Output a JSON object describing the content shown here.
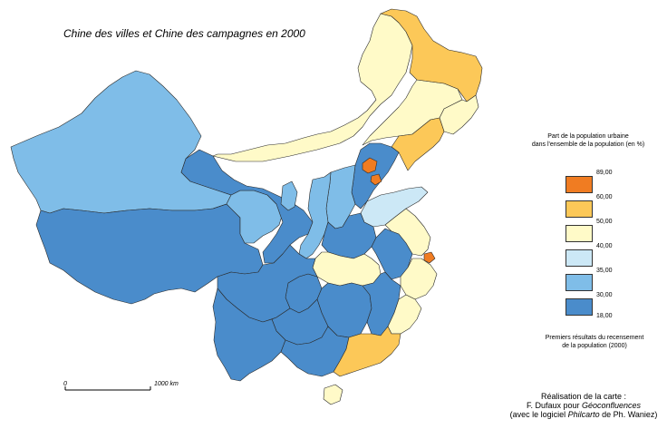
{
  "title": "Chine des villes et Chine des campagnes en 2000",
  "colors": {
    "gt60": "#f07c22",
    "50_60": "#fcc858",
    "40_50": "#fffac8",
    "35_40": "#cce8f6",
    "30_35": "#7fbde8",
    "18_30": "#4a8ccb",
    "border": "#2a2a2a"
  },
  "legend": {
    "title_line1": "Part de la population urbaine",
    "title_line2": "dans l'ensemble de la population (en %)",
    "classes": [
      {
        "label": "89,00",
        "color": "#f07c22"
      },
      {
        "label": "60,00",
        "color": "#fcc858"
      },
      {
        "label": "50,00",
        "color": "#fffac8"
      },
      {
        "label": "40,00",
        "color": "#cce8f6"
      },
      {
        "label": "35,00",
        "color": "#7fbde8"
      },
      {
        "label": "30,00",
        "color": "#4a8ccb"
      },
      {
        "label": "18,00",
        "color": null
      }
    ],
    "note_line1": "Premiers résultats du recensement",
    "note_line2": "de la population (2000)"
  },
  "scale": {
    "start": "0",
    "end": "1000 km"
  },
  "credits": {
    "line1": "Réalisation de la carte :",
    "line2_prefix": "F. Dufaux pour ",
    "line2_italic": "Géoconfluences",
    "line3_prefix": "(avec le logiciel ",
    "line3_italic": "Philcarto",
    "line3_suffix": " de Ph. Waniez)"
  },
  "regions": [
    {
      "name": "Xinjiang",
      "class": "30_35"
    },
    {
      "name": "Tibet",
      "class": "18_30"
    },
    {
      "name": "Qinghai",
      "class": "30_35"
    },
    {
      "name": "Gansu",
      "class": "18_30"
    },
    {
      "name": "Inner Mongolia",
      "class": "40_50"
    },
    {
      "name": "Heilongjiang",
      "class": "50_60"
    },
    {
      "name": "Jilin",
      "class": "40_50"
    },
    {
      "name": "Liaoning",
      "class": "50_60"
    },
    {
      "name": "Beijing",
      "class": "gt60"
    },
    {
      "name": "Tianjin",
      "class": "gt60"
    },
    {
      "name": "Hebei",
      "class": "18_30"
    },
    {
      "name": "Shanxi",
      "class": "30_35"
    },
    {
      "name": "Shaanxi",
      "class": "30_35"
    },
    {
      "name": "Ningxia",
      "class": "30_35"
    },
    {
      "name": "Shandong",
      "class": "35_40"
    },
    {
      "name": "Henan",
      "class": "18_30"
    },
    {
      "name": "Jiangsu",
      "class": "40_50"
    },
    {
      "name": "Shanghai",
      "class": "gt60"
    },
    {
      "name": "Anhui",
      "class": "18_30"
    },
    {
      "name": "Zhejiang",
      "class": "40_50"
    },
    {
      "name": "Hubei",
      "class": "40_50"
    },
    {
      "name": "Sichuan",
      "class": "18_30"
    },
    {
      "name": "Chongqing",
      "class": "18_30"
    },
    {
      "name": "Hunan",
      "class": "18_30"
    },
    {
      "name": "Jiangxi",
      "class": "18_30"
    },
    {
      "name": "Fujian",
      "class": "40_50"
    },
    {
      "name": "Guizhou",
      "class": "18_30"
    },
    {
      "name": "Yunnan",
      "class": "18_30"
    },
    {
      "name": "Guangxi",
      "class": "18_30"
    },
    {
      "name": "Guangdong",
      "class": "50_60"
    },
    {
      "name": "Hainan",
      "class": "40_50"
    }
  ]
}
